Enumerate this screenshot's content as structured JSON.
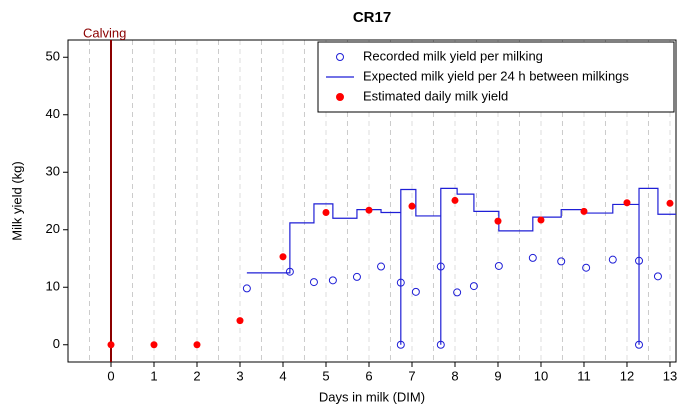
{
  "chart_data": {
    "type": "scatter",
    "title": "CR17",
    "x_label": "Days in milk (DIM)",
    "y_label": "Milk yield (kg)",
    "xlim": [
      -1,
      13.14
    ],
    "ylim": [
      -3,
      53
    ],
    "xticks": [
      0,
      1,
      2,
      3,
      4,
      5,
      6,
      7,
      8,
      9,
      10,
      11,
      12,
      13
    ],
    "yticks": [
      0,
      10,
      20,
      30,
      40,
      50
    ],
    "xgrid": [
      -0.5,
      0.5,
      1.5,
      2.5,
      3.5,
      4.5,
      5.5,
      6.5,
      7.5,
      8.5,
      9.5,
      10.5,
      11.5,
      12.5
    ],
    "legend": "top-right",
    "annotations": [
      {
        "text": "Calving",
        "x": 0,
        "color": "#8b0000"
      }
    ],
    "series": [
      {
        "name": "Recorded milk yield per milking",
        "color": "#1f1fd6",
        "style": "open-circle",
        "x": [
          3.16,
          4.16,
          4.72,
          5.16,
          5.72,
          6.28,
          6.74,
          6.74,
          7.09,
          7.67,
          7.67,
          8.05,
          8.44,
          9.02,
          9.81,
          10.47,
          11.05,
          11.67,
          12.28,
          12.28,
          12.72
        ],
        "values": [
          9.8,
          12.7,
          10.9,
          11.2,
          11.8,
          13.6,
          10.8,
          0,
          9.2,
          13.6,
          0,
          9.1,
          10.2,
          13.7,
          15.1,
          14.5,
          13.4,
          14.8,
          14.6,
          0,
          11.9
        ]
      },
      {
        "name": "Expected milk yield per 24 h between milkings",
        "color": "#1f1fd6",
        "style": "line",
        "x": [
          3.16,
          4.16,
          4.16,
          4.72,
          4.72,
          5.16,
          5.16,
          5.72,
          5.72,
          6.28,
          6.28,
          6.74,
          6.74,
          6.74,
          7.09,
          7.09,
          7.67,
          7.67,
          7.67,
          8.05,
          8.05,
          8.44,
          8.44,
          9.02,
          9.02,
          9.81,
          9.81,
          10.47,
          10.47,
          11.05,
          11.05,
          11.67,
          11.67,
          12.28,
          12.28,
          12.28,
          12.72,
          12.72,
          13.14
        ],
        "values": [
          12.5,
          12.5,
          21.2,
          21.2,
          24.5,
          24.5,
          22,
          22,
          23.5,
          23.5,
          23,
          23,
          0,
          27,
          27,
          22.4,
          22.4,
          0,
          27.2,
          27.2,
          26.2,
          26.2,
          23.2,
          23.2,
          19.8,
          19.8,
          22.2,
          22.2,
          23.5,
          23.5,
          22.9,
          22.9,
          24.4,
          24.4,
          0,
          27.2,
          27.2,
          22.7,
          22.7
        ]
      },
      {
        "name": "Estimated daily milk yield",
        "color": "#ff0000",
        "style": "dot",
        "x": [
          0,
          1,
          2,
          3,
          4,
          5,
          6,
          7,
          8,
          9,
          10,
          11,
          12,
          13
        ],
        "values": [
          0,
          0,
          0,
          4.2,
          15.3,
          23,
          23.4,
          24.1,
          25.1,
          21.5,
          21.7,
          23.2,
          24.7,
          24.6
        ]
      }
    ]
  }
}
